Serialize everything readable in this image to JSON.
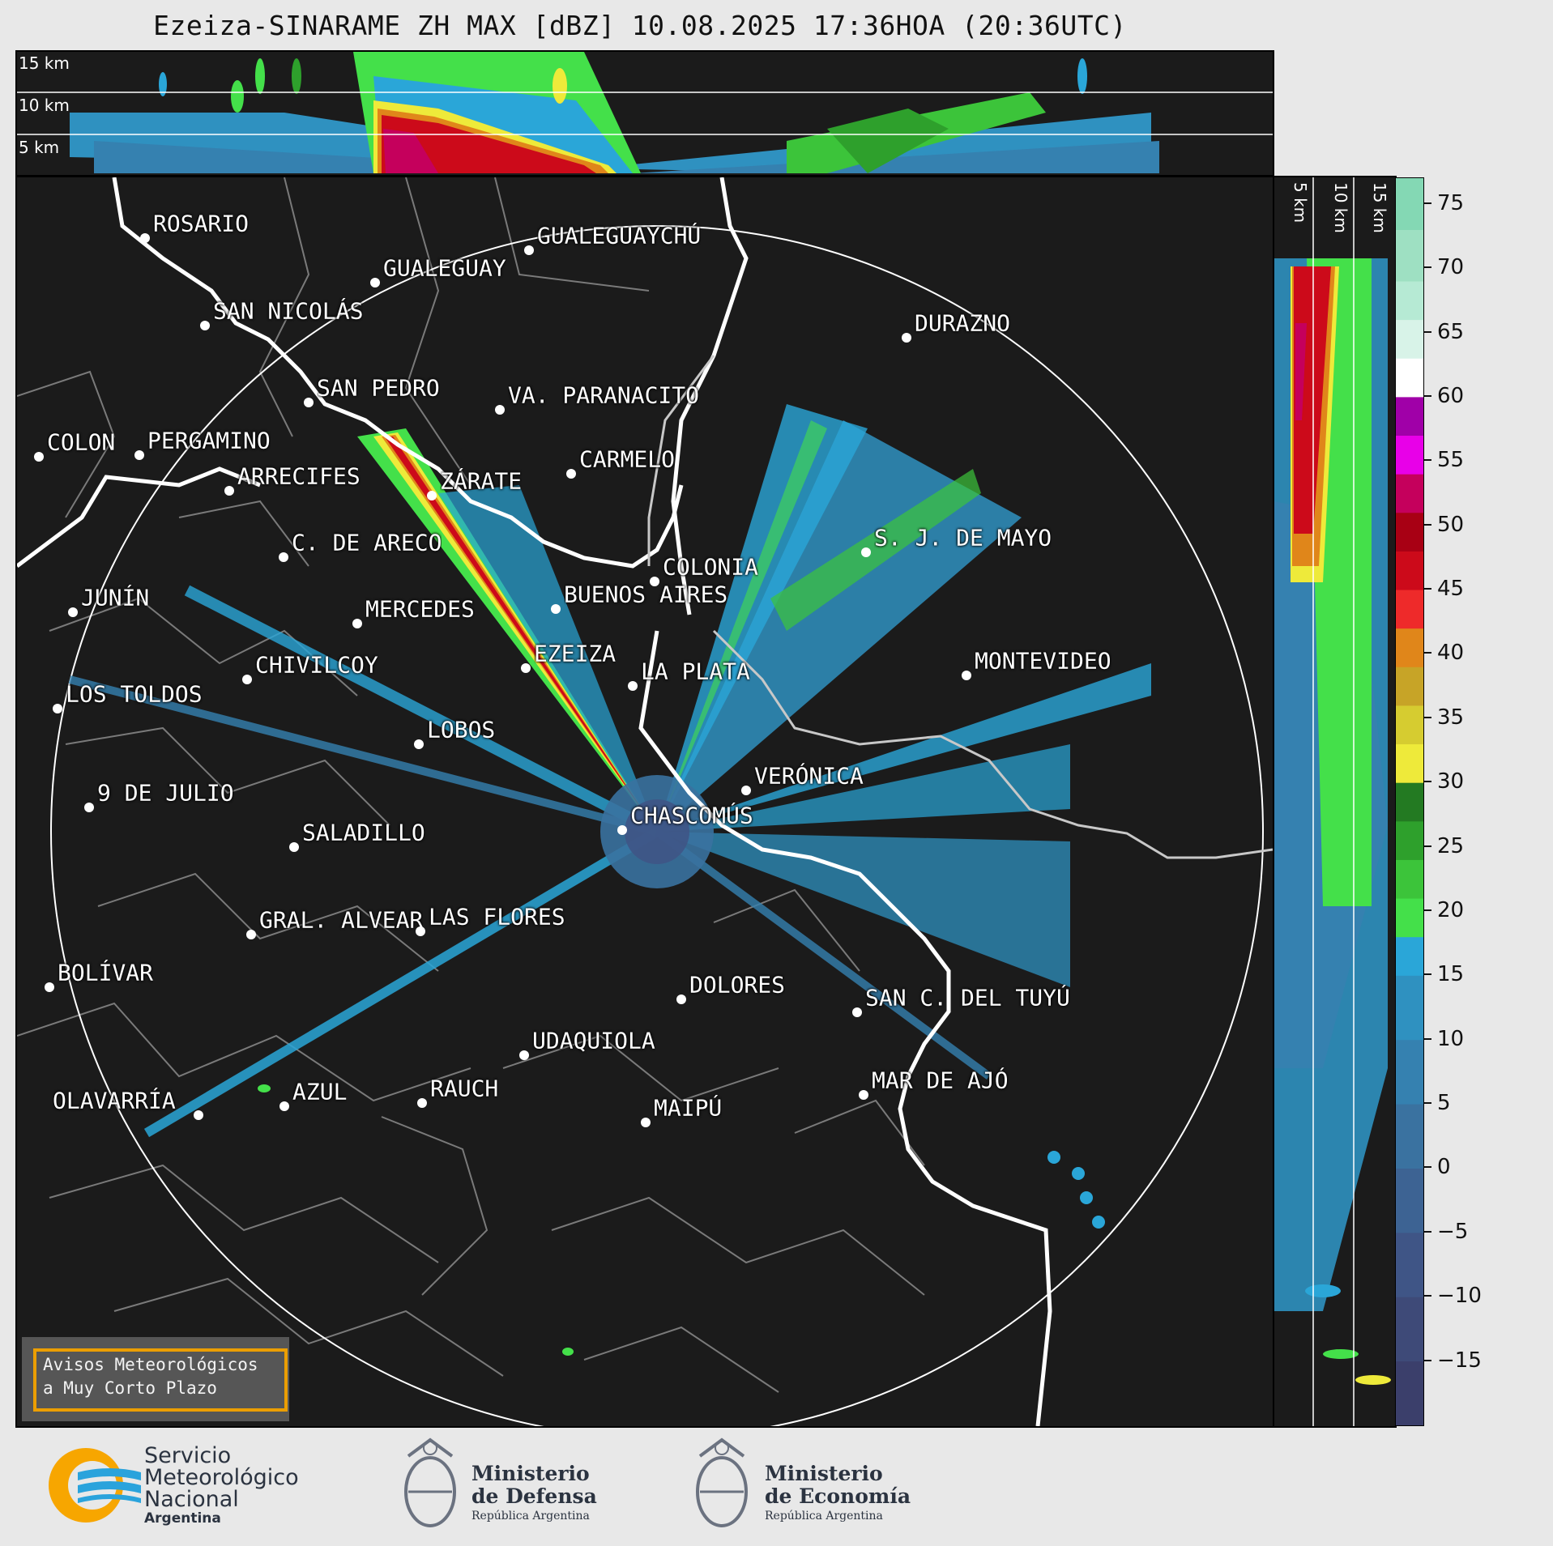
{
  "title": "Ezeiza-SINARAME ZH MAX [dBZ] 10.08.2025 17:36HOA (20:36UTC)",
  "top_panel": {
    "altitude_labels": [
      "15 km",
      "10 km",
      "5 km"
    ]
  },
  "side_panel": {
    "altitude_labels": [
      "5 km",
      "10 km",
      "15 km"
    ]
  },
  "colorbar": {
    "unit": "dBZ",
    "ticks": [
      75,
      70,
      65,
      60,
      55,
      50,
      45,
      40,
      35,
      30,
      25,
      20,
      15,
      10,
      5,
      0,
      "−5",
      "−10",
      "−15"
    ],
    "min": -20,
    "max": 77,
    "colors": [
      {
        "from": -20,
        "to": -15,
        "color": "#3b3f6b"
      },
      {
        "from": -15,
        "to": -10,
        "color": "#3e4a78"
      },
      {
        "from": -10,
        "to": -5,
        "color": "#3f5586"
      },
      {
        "from": -5,
        "to": 0,
        "color": "#3d6393"
      },
      {
        "from": 0,
        "to": 5,
        "color": "#3a72a0"
      },
      {
        "from": 5,
        "to": 10,
        "color": "#3581b0"
      },
      {
        "from": 10,
        "to": 15,
        "color": "#2f91c0"
      },
      {
        "from": 15,
        "to": 18,
        "color": "#2aa6d8"
      },
      {
        "from": 18,
        "to": 21,
        "color": "#44e04a"
      },
      {
        "from": 21,
        "to": 24,
        "color": "#3cc43a"
      },
      {
        "from": 24,
        "to": 27,
        "color": "#2ea02c"
      },
      {
        "from": 27,
        "to": 30,
        "color": "#237a22"
      },
      {
        "from": 30,
        "to": 33,
        "color": "#eeea3a"
      },
      {
        "from": 33,
        "to": 36,
        "color": "#d6cc30"
      },
      {
        "from": 36,
        "to": 39,
        "color": "#c7a427"
      },
      {
        "from": 39,
        "to": 42,
        "color": "#e0861a"
      },
      {
        "from": 42,
        "to": 45,
        "color": "#ee2a2a"
      },
      {
        "from": 45,
        "to": 48,
        "color": "#cc0a1a"
      },
      {
        "from": 48,
        "to": 51,
        "color": "#a80014"
      },
      {
        "from": 51,
        "to": 54,
        "color": "#c5005c"
      },
      {
        "from": 54,
        "to": 57,
        "color": "#e800e8"
      },
      {
        "from": 57,
        "to": 60,
        "color": "#a000a8"
      },
      {
        "from": 60,
        "to": 63,
        "color": "#ffffff"
      },
      {
        "from": 63,
        "to": 66,
        "color": "#d8f3e8"
      },
      {
        "from": 66,
        "to": 69,
        "color": "#b6ead4"
      },
      {
        "from": 69,
        "to": 73,
        "color": "#9ee0c2"
      },
      {
        "from": 73,
        "to": 77,
        "color": "#84d8b4"
      }
    ]
  },
  "cities": [
    {
      "name": "ROSARIO"
    },
    {
      "name": "GUALEGUAYCHÚ"
    },
    {
      "name": "GUALEGUAY"
    },
    {
      "name": "SAN NICOLÁS"
    },
    {
      "name": "DURAZNO"
    },
    {
      "name": "SAN PEDRO"
    },
    {
      "name": "VA. PARANACITO"
    },
    {
      "name": "COLON"
    },
    {
      "name": "PERGAMINO"
    },
    {
      "name": "CARMELO"
    },
    {
      "name": "ARRECIFES"
    },
    {
      "name": "ZÁRATE"
    },
    {
      "name": "S. J. DE MAYO"
    },
    {
      "name": "C. DE ARECO"
    },
    {
      "name": "COLONIA"
    },
    {
      "name": "JUNÍN"
    },
    {
      "name": "BUENOS AIRES"
    },
    {
      "name": "MERCEDES"
    },
    {
      "name": "EZEIZA"
    },
    {
      "name": "MONTEVIDEO"
    },
    {
      "name": "CHIVILCOY"
    },
    {
      "name": "LA PLATA"
    },
    {
      "name": "LOS TOLDOS"
    },
    {
      "name": "LOBOS"
    },
    {
      "name": "VERÓNICA"
    },
    {
      "name": "9 DE JULIO"
    },
    {
      "name": "CHASCOMÚS"
    },
    {
      "name": "SALADILLO"
    },
    {
      "name": "GRAL. ALVEAR"
    },
    {
      "name": "LAS FLORES"
    },
    {
      "name": "BOLÍVAR"
    },
    {
      "name": "DOLORES"
    },
    {
      "name": "SAN C. DEL TUYÚ"
    },
    {
      "name": "UDAQUIOLA"
    },
    {
      "name": "MAR DE AJÓ"
    },
    {
      "name": "AZUL"
    },
    {
      "name": "RAUCH"
    },
    {
      "name": "OLAVARRÍA"
    },
    {
      "name": "MAIPÚ"
    }
  ],
  "alert_box": {
    "line1": "Avisos Meteorológicos",
    "line2": "a Muy Corto Plazo"
  },
  "logos": {
    "smn": {
      "line1": "Servicio",
      "line2": "Meteorológico",
      "line3": "Nacional",
      "line4": "Argentina"
    },
    "defensa": {
      "line1": "Ministerio",
      "line2": "de Defensa",
      "line3": "República Argentina"
    },
    "economia": {
      "line1": "Ministerio",
      "line2": "de Economía",
      "line3": "República Argentina"
    }
  },
  "colors": {
    "background": "#1b1b1b",
    "accent_orange": "#f7a600",
    "smn_blue": "#2aa3dc"
  }
}
